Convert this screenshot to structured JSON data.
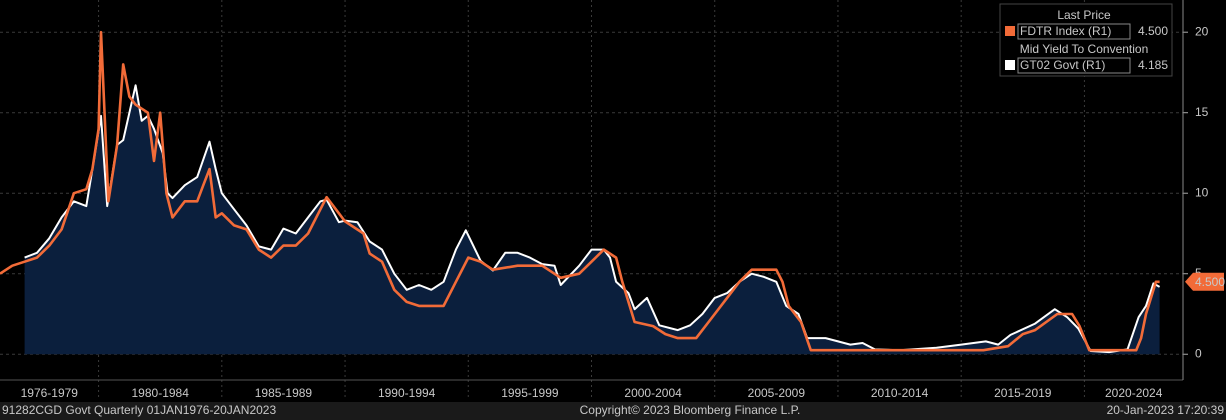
{
  "chart_data": {
    "type": "line",
    "xlim": [
      1976,
      2024
    ],
    "ylim": [
      -1.6,
      22
    ],
    "yticks": [
      0,
      5,
      10,
      15,
      20
    ],
    "grid": true,
    "periods": [
      {
        "start": 1976,
        "end": 1980,
        "label": "1976-1979"
      },
      {
        "start": 1980,
        "end": 1985,
        "label": "1980-1984"
      },
      {
        "start": 1985,
        "end": 1990,
        "label": "1985-1989"
      },
      {
        "start": 1990,
        "end": 1995,
        "label": "1990-1994"
      },
      {
        "start": 1995,
        "end": 2000,
        "label": "1995-1999"
      },
      {
        "start": 2000,
        "end": 2005,
        "label": "2000-2004"
      },
      {
        "start": 2005,
        "end": 2010,
        "label": "2005-2009"
      },
      {
        "start": 2010,
        "end": 2015,
        "label": "2010-2014"
      },
      {
        "start": 2015,
        "end": 2020,
        "label": "2015-2019"
      },
      {
        "start": 2020,
        "end": 2025,
        "label": "2020-2024"
      }
    ],
    "series": [
      {
        "name": "FDTR Index  (R1)",
        "legend_header": "Last Price",
        "last_price": "4.500",
        "color": "#f26b38",
        "fill": false,
        "x": [
          1976.0,
          1976.5,
          1977.0,
          1977.5,
          1978.0,
          1978.5,
          1979.0,
          1979.5,
          1979.75,
          1980.0,
          1980.1,
          1980.4,
          1980.75,
          1981.0,
          1981.25,
          1981.5,
          1982.0,
          1982.25,
          1982.5,
          1982.75,
          1983.0,
          1983.5,
          1984.0,
          1984.25,
          1984.5,
          1984.75,
          1985.0,
          1985.5,
          1986.0,
          1986.5,
          1987.0,
          1987.5,
          1988.0,
          1988.5,
          1989.0,
          1989.25,
          1989.75,
          1990.0,
          1990.75,
          1991.0,
          1991.5,
          1992.0,
          1992.5,
          1993.0,
          1994.0,
          1994.5,
          1995.0,
          1995.5,
          1996.0,
          1997.0,
          1998.0,
          1998.75,
          1999.5,
          2000.0,
          2000.5,
          2001.0,
          2001.25,
          2001.75,
          2002.5,
          2003.0,
          2003.5,
          2004.25,
          2004.75,
          2005.5,
          2006.0,
          2006.5,
          2007.5,
          2007.75,
          2008.0,
          2008.5,
          2008.9,
          2015.9,
          2016.9,
          2017.5,
          2018.0,
          2018.9,
          2019.5,
          2019.8,
          2020.2,
          2022.1,
          2022.3,
          2022.5,
          2022.75,
          2022.9,
          2023.05
        ],
        "values": [
          5.0,
          5.5,
          5.75,
          6.0,
          6.75,
          7.75,
          10.0,
          10.25,
          11.5,
          14.0,
          20.0,
          9.5,
          13.0,
          18.0,
          16.0,
          15.5,
          15.0,
          12.0,
          15.0,
          10.0,
          8.5,
          9.5,
          9.5,
          10.5,
          11.5,
          8.5,
          8.75,
          8.0,
          7.75,
          6.5,
          6.0,
          6.75,
          6.75,
          7.5,
          9.0,
          9.75,
          8.75,
          8.25,
          7.5,
          6.25,
          5.75,
          4.0,
          3.25,
          3.0,
          3.0,
          4.5,
          6.0,
          5.75,
          5.25,
          5.5,
          5.5,
          4.75,
          5.0,
          5.75,
          6.5,
          6.0,
          4.5,
          2.0,
          1.75,
          1.25,
          1.0,
          1.0,
          2.0,
          3.5,
          4.5,
          5.25,
          5.25,
          4.5,
          3.0,
          2.0,
          0.25,
          0.25,
          0.5,
          1.25,
          1.5,
          2.5,
          2.5,
          1.75,
          0.25,
          0.25,
          1.0,
          2.5,
          3.75,
          4.5,
          4.5
        ]
      },
      {
        "name": "GT02 Govt  (R1)",
        "legend_header": "Mid Yield To Convention",
        "last_price": "4.185",
        "color": "#ffffff",
        "fill": true,
        "x": [
          1977.0,
          1977.5,
          1978.0,
          1978.5,
          1979.0,
          1979.5,
          1979.75,
          1980.1,
          1980.35,
          1980.75,
          1981.0,
          1981.25,
          1981.5,
          1981.75,
          1982.0,
          1982.25,
          1982.6,
          1982.8,
          1983.0,
          1983.5,
          1984.0,
          1984.5,
          1984.75,
          1985.0,
          1985.5,
          1986.0,
          1986.5,
          1987.0,
          1987.5,
          1988.0,
          1988.5,
          1989.0,
          1989.25,
          1989.75,
          1990.0,
          1990.5,
          1991.0,
          1991.5,
          1992.0,
          1992.5,
          1993.0,
          1993.5,
          1994.0,
          1994.5,
          1994.9,
          1995.5,
          1996.0,
          1996.5,
          1997.0,
          1997.5,
          1998.0,
          1998.5,
          1998.75,
          1999.5,
          2000.0,
          2000.5,
          2000.75,
          2001.0,
          2001.5,
          2001.75,
          2002.25,
          2002.75,
          2003.5,
          2004.0,
          2004.5,
          2005.0,
          2005.5,
          2006.0,
          2006.5,
          2007.0,
          2007.5,
          2007.9,
          2008.4,
          2008.75,
          2009.5,
          2010.0,
          2010.5,
          2011.0,
          2011.5,
          2012.5,
          2014.0,
          2015.0,
          2016.0,
          2016.5,
          2017.0,
          2018.0,
          2018.8,
          2019.3,
          2019.75,
          2020.25,
          2021.0,
          2021.75,
          2022.2,
          2022.5,
          2022.8,
          2023.05
        ],
        "values": [
          6.0,
          6.3,
          7.2,
          8.5,
          9.5,
          9.2,
          11.5,
          14.8,
          9.2,
          13.0,
          13.3,
          15.0,
          16.7,
          14.5,
          14.8,
          14.0,
          12.5,
          10.0,
          9.7,
          10.5,
          11.0,
          13.2,
          11.5,
          10.0,
          9.0,
          8.0,
          6.7,
          6.5,
          7.8,
          7.5,
          8.5,
          9.5,
          9.6,
          8.2,
          8.3,
          8.2,
          7.0,
          6.5,
          5.0,
          4.0,
          4.3,
          4.0,
          4.5,
          6.5,
          7.7,
          5.8,
          5.2,
          6.3,
          6.3,
          6.0,
          5.6,
          5.5,
          4.3,
          5.5,
          6.5,
          6.5,
          6.0,
          4.5,
          3.8,
          2.8,
          3.5,
          1.8,
          1.5,
          1.8,
          2.5,
          3.5,
          3.8,
          4.5,
          5.0,
          4.8,
          4.5,
          3.0,
          2.5,
          1.0,
          1.0,
          0.8,
          0.6,
          0.7,
          0.3,
          0.25,
          0.4,
          0.6,
          0.8,
          0.6,
          1.2,
          1.9,
          2.8,
          2.3,
          1.6,
          0.2,
          0.13,
          0.3,
          2.3,
          3.0,
          4.4,
          4.185
        ]
      }
    ],
    "footer": {
      "left": "91282CGD Govt  Quarterly 01JAN1976-20JAN2023",
      "center": "Copyright© 2023 Bloomberg Finance L.P.",
      "right": "20-Jan-2023 17:20:39"
    }
  }
}
